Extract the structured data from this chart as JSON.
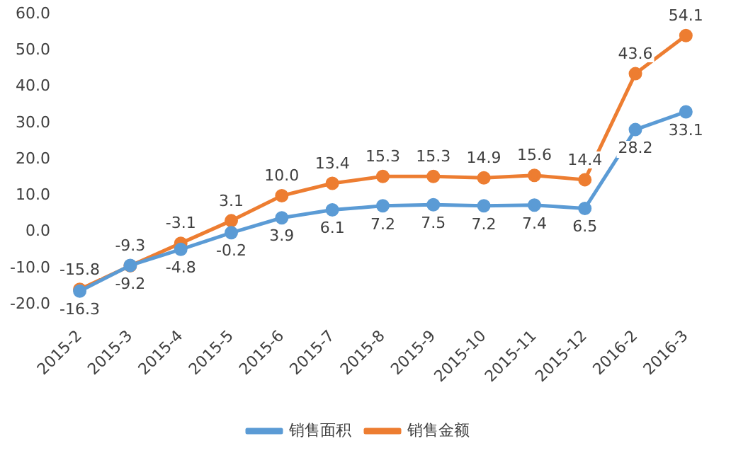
{
  "chart_data": {
    "type": "line",
    "categories": [
      "2015-2",
      "2015-3",
      "2015-4",
      "2015-5",
      "2015-6",
      "2015-7",
      "2015-8",
      "2015-9",
      "2015-10",
      "2015-11",
      "2015-12",
      "2016-2",
      "2016-3"
    ],
    "series": [
      {
        "name": "销售面积",
        "color": "#5b9bd5",
        "values": [
          -16.3,
          -9.2,
          -4.8,
          -0.2,
          3.9,
          6.1,
          7.2,
          7.5,
          7.2,
          7.4,
          6.5,
          28.2,
          33.1
        ],
        "value_labels": [
          "-16.3",
          "-9.2",
          "-4.8",
          "-0.2",
          "3.9",
          "6.1",
          "7.2",
          "7.5",
          "7.2",
          "7.4",
          "6.5",
          "28.2",
          "33.1"
        ]
      },
      {
        "name": "销售金额",
        "color": "#ed7d31",
        "values": [
          -15.8,
          -9.3,
          -3.1,
          3.1,
          10.0,
          13.4,
          15.3,
          15.3,
          14.9,
          15.6,
          14.4,
          43.6,
          54.1
        ],
        "value_labels": [
          "-15.8",
          "-9.3",
          "-3.1",
          "3.1",
          "10.0",
          "13.4",
          "15.3",
          "15.3",
          "14.9",
          "15.6",
          "14.4",
          "43.6",
          "54.1"
        ]
      }
    ],
    "ylim": [
      -20,
      60
    ],
    "yticks": [
      {
        "value": -20,
        "label": "-20.0"
      },
      {
        "value": -10,
        "label": "-10.0"
      },
      {
        "value": 0,
        "label": "0.0"
      },
      {
        "value": 10,
        "label": "10.0"
      },
      {
        "value": 20,
        "label": "20.0"
      },
      {
        "value": 30,
        "label": "30.0"
      },
      {
        "value": 40,
        "label": "40.0"
      },
      {
        "value": 50,
        "label": "50.0"
      },
      {
        "value": 60,
        "label": "60.0"
      }
    ],
    "grid": false,
    "legend": "bottom",
    "marker": "circle",
    "line_style": "solid"
  }
}
